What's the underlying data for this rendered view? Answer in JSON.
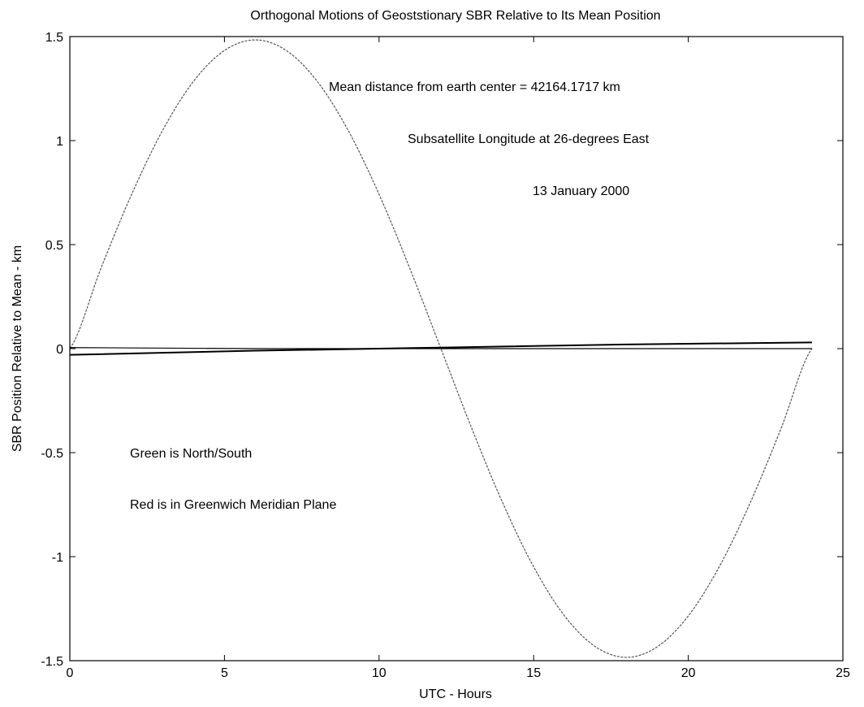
{
  "chart_data": {
    "type": "line",
    "title": "Orthogonal Motions of Geoststionary SBR Relative to Its Mean Position",
    "xlabel": "UTC - Hours",
    "ylabel": "SBR Position Relative to Mean - km",
    "xlim": [
      0,
      25
    ],
    "ylim": [
      -1.5,
      1.5
    ],
    "xticks": [
      0,
      5,
      10,
      15,
      20,
      25
    ],
    "yticks": [
      -1.5,
      -1,
      -0.5,
      0,
      0.5,
      1,
      1.5
    ],
    "xtick_labels": [
      "0",
      "5",
      "10",
      "15",
      "20",
      "25"
    ],
    "ytick_labels": [
      "-1.5",
      "-1",
      "-0.5",
      "0",
      "0.5",
      "1",
      "1.5"
    ],
    "grid": false,
    "series": [
      {
        "color": "#555555",
        "x": [
          0,
          1,
          2,
          3,
          4,
          5,
          6,
          7,
          8,
          9,
          10,
          11,
          12,
          13,
          14,
          15,
          16,
          17,
          18,
          19,
          20,
          21,
          22,
          23,
          24
        ],
        "y": [
          0.0,
          0.384,
          0.742,
          1.049,
          1.285,
          1.433,
          1.484,
          1.433,
          1.285,
          1.049,
          0.742,
          0.384,
          0.0,
          -0.384,
          -0.742,
          -1.049,
          -1.285,
          -1.433,
          -1.484,
          -1.433,
          -1.285,
          -1.049,
          -0.742,
          -0.384,
          0.0
        ]
      },
      {
        "color": "#000000",
        "x": [
          0,
          6,
          12,
          18,
          24
        ],
        "y": [
          -0.03,
          -0.01,
          0.005,
          0.02,
          0.03
        ]
      },
      {
        "color": "#000000",
        "x": [
          0,
          6,
          12,
          18,
          24
        ],
        "y": [
          0.005,
          0.0,
          0.0,
          0.0,
          0.0
        ]
      }
    ],
    "annotations": [
      "Mean distance from earth center = 42164.1717 km",
      "Subsatellite Longitude at 26-degrees East",
      "13 January 2000",
      "Green is North/South",
      "Red is in Greenwich Meridian Plane"
    ]
  }
}
